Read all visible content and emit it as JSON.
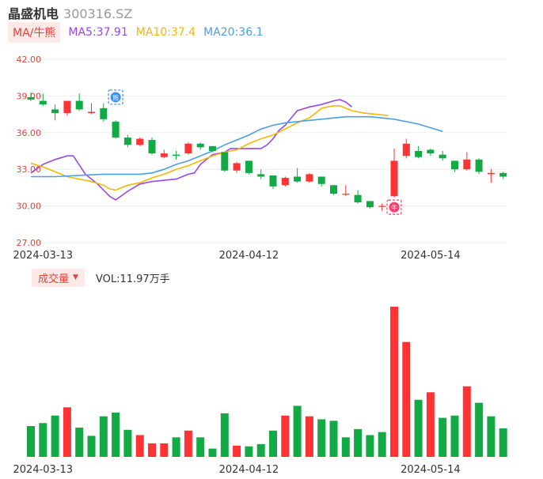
{
  "header": {
    "name": "晶盛机电",
    "code": "300316.SZ"
  },
  "legend": {
    "ma_tag": "MA/牛熊",
    "ma5": "MA5:37.91",
    "ma10": "MA10:37.4",
    "ma20": "MA20:36.1"
  },
  "volume_legend": {
    "tag": "成交量",
    "value": "VOL:11.97万手"
  },
  "colors": {
    "up": "#ff3333",
    "down": "#11aa44",
    "ma5": "#9b47e8",
    "ma10": "#f5b800",
    "ma20": "#4b9ee8",
    "tag_bg": "#fde9e7",
    "tag_text": "#e2433c"
  },
  "chart_data": [
    {
      "type": "candlestick",
      "y_ticks": [
        "42.00",
        "39.00",
        "36.00",
        "33.00",
        "30.00",
        "27.00"
      ],
      "ylim": [
        27,
        42
      ],
      "x_labels": [
        {
          "index": 1,
          "label": "2024-03-13"
        },
        {
          "index": 18,
          "label": "2024-04-12"
        },
        {
          "index": 33,
          "label": "2024-05-14"
        }
      ],
      "markers": [
        {
          "index": 7,
          "price": 38.9,
          "type": "bear",
          "glyph": "熊"
        },
        {
          "index": 30,
          "price": 29.9,
          "type": "bull",
          "glyph": "牛"
        }
      ],
      "candles": [
        {
          "o": 38.9,
          "h": 39.3,
          "l": 38.6,
          "c": 38.7
        },
        {
          "o": 38.6,
          "h": 39.2,
          "l": 38.2,
          "c": 38.3
        },
        {
          "o": 37.9,
          "h": 38.3,
          "l": 37.0,
          "c": 37.6
        },
        {
          "o": 37.6,
          "h": 38.6,
          "l": 37.4,
          "c": 38.6
        },
        {
          "o": 38.6,
          "h": 39.2,
          "l": 37.8,
          "c": 37.9
        },
        {
          "o": 37.6,
          "h": 38.4,
          "l": 37.5,
          "c": 37.7
        },
        {
          "o": 38.0,
          "h": 38.4,
          "l": 36.9,
          "c": 37.1
        },
        {
          "o": 36.9,
          "h": 37.0,
          "l": 35.5,
          "c": 35.6
        },
        {
          "o": 35.6,
          "h": 35.8,
          "l": 34.8,
          "c": 35.0
        },
        {
          "o": 35.0,
          "h": 35.6,
          "l": 34.9,
          "c": 35.5
        },
        {
          "o": 35.4,
          "h": 35.6,
          "l": 34.2,
          "c": 34.3
        },
        {
          "o": 34.0,
          "h": 34.6,
          "l": 33.9,
          "c": 34.3
        },
        {
          "o": 34.2,
          "h": 34.5,
          "l": 33.8,
          "c": 34.1
        },
        {
          "o": 34.3,
          "h": 35.2,
          "l": 34.2,
          "c": 35.1
        },
        {
          "o": 35.1,
          "h": 35.2,
          "l": 34.6,
          "c": 34.8
        },
        {
          "o": 34.9,
          "h": 34.9,
          "l": 34.4,
          "c": 34.5
        },
        {
          "o": 34.4,
          "h": 34.4,
          "l": 32.8,
          "c": 32.9
        },
        {
          "o": 32.9,
          "h": 33.6,
          "l": 32.7,
          "c": 33.5
        },
        {
          "o": 33.7,
          "h": 33.7,
          "l": 32.6,
          "c": 32.7
        },
        {
          "o": 32.6,
          "h": 33.0,
          "l": 32.2,
          "c": 32.4
        },
        {
          "o": 32.5,
          "h": 32.5,
          "l": 31.4,
          "c": 31.6
        },
        {
          "o": 31.7,
          "h": 32.4,
          "l": 31.6,
          "c": 32.3
        },
        {
          "o": 32.4,
          "h": 33.1,
          "l": 31.9,
          "c": 32.0
        },
        {
          "o": 32.0,
          "h": 32.7,
          "l": 31.9,
          "c": 32.6
        },
        {
          "o": 32.4,
          "h": 32.4,
          "l": 31.6,
          "c": 31.8
        },
        {
          "o": 31.7,
          "h": 31.7,
          "l": 30.9,
          "c": 31.0
        },
        {
          "o": 31.0,
          "h": 31.7,
          "l": 30.8,
          "c": 31.0
        },
        {
          "o": 30.9,
          "h": 31.3,
          "l": 30.2,
          "c": 30.3
        },
        {
          "o": 30.4,
          "h": 30.4,
          "l": 29.8,
          "c": 29.9
        },
        {
          "o": 30.0,
          "h": 30.2,
          "l": 29.6,
          "c": 30.0
        },
        {
          "o": 30.8,
          "h": 34.7,
          "l": 30.7,
          "c": 33.7
        },
        {
          "o": 34.1,
          "h": 35.5,
          "l": 33.9,
          "c": 35.1
        },
        {
          "o": 34.5,
          "h": 34.9,
          "l": 33.9,
          "c": 34.0
        },
        {
          "o": 34.6,
          "h": 34.7,
          "l": 34.1,
          "c": 34.3
        },
        {
          "o": 34.2,
          "h": 34.5,
          "l": 33.7,
          "c": 33.9
        },
        {
          "o": 33.7,
          "h": 33.7,
          "l": 32.8,
          "c": 33.0
        },
        {
          "o": 33.0,
          "h": 34.4,
          "l": 32.9,
          "c": 33.8
        },
        {
          "o": 33.8,
          "h": 33.9,
          "l": 32.6,
          "c": 32.8
        },
        {
          "o": 32.6,
          "h": 33.0,
          "l": 31.9,
          "c": 32.7
        },
        {
          "o": 32.7,
          "h": 32.8,
          "l": 32.2,
          "c": 32.4
        }
      ],
      "ma": [
        {
          "name": "MA5",
          "points": [
            [
              0,
              32.7
            ],
            [
              2,
              33.4
            ],
            [
              4,
              33.8
            ],
            [
              6,
              34.1
            ],
            [
              7,
              34.1
            ],
            [
              9,
              32.6
            ],
            [
              11,
              31.8
            ],
            [
              12,
              31.3
            ],
            [
              13,
              30.8
            ],
            [
              14,
              30.5
            ],
            [
              16,
              31.2
            ],
            [
              18,
              31.8
            ],
            [
              20,
              32.0
            ],
            [
              22,
              32.1
            ],
            [
              24,
              32.2
            ],
            [
              26,
              32.6
            ],
            [
              27,
              32.7
            ],
            [
              28,
              33.4
            ],
            [
              29,
              33.8
            ],
            [
              30,
              34.2
            ],
            [
              32,
              34.4
            ],
            [
              33,
              34.7
            ],
            [
              35,
              34.7
            ],
            [
              37,
              34.7
            ],
            [
              38,
              34.7
            ],
            [
              39,
              35.0
            ],
            [
              40,
              35.5
            ],
            [
              41,
              36.2
            ],
            [
              42,
              36.6
            ],
            [
              43,
              37.2
            ],
            [
              44,
              37.8
            ],
            [
              46,
              38.1
            ],
            [
              48,
              38.3
            ],
            [
              50,
              38.6
            ],
            [
              51,
              38.7
            ],
            [
              52,
              38.5
            ],
            [
              53,
              38.1
            ]
          ]
        },
        {
          "name": "MA10",
          "points": [
            [
              0,
              33.5
            ],
            [
              2,
              33.2
            ],
            [
              4,
              32.8
            ],
            [
              6,
              32.4
            ],
            [
              8,
              32.2
            ],
            [
              10,
              32.0
            ],
            [
              12,
              31.7
            ],
            [
              13,
              31.4
            ],
            [
              14,
              31.3
            ],
            [
              16,
              31.7
            ],
            [
              18,
              31.9
            ],
            [
              20,
              32.3
            ],
            [
              22,
              32.6
            ],
            [
              24,
              33.0
            ],
            [
              26,
              33.3
            ],
            [
              28,
              33.7
            ],
            [
              30,
              34.1
            ],
            [
              32,
              34.4
            ],
            [
              34,
              34.6
            ],
            [
              36,
              35.1
            ],
            [
              38,
              35.5
            ],
            [
              40,
              35.8
            ],
            [
              42,
              36.3
            ],
            [
              44,
              36.8
            ],
            [
              46,
              37.2
            ],
            [
              47,
              37.6
            ],
            [
              48,
              38.0
            ],
            [
              50,
              38.2
            ],
            [
              51,
              38.2
            ],
            [
              53,
              37.8
            ],
            [
              55,
              37.6
            ],
            [
              57,
              37.5
            ],
            [
              59,
              37.4
            ]
          ]
        },
        {
          "name": "MA20",
          "points": [
            [
              0,
              32.4
            ],
            [
              4,
              32.4
            ],
            [
              8,
              32.5
            ],
            [
              12,
              32.6
            ],
            [
              14,
              32.6
            ],
            [
              16,
              32.6
            ],
            [
              18,
              32.6
            ],
            [
              20,
              32.7
            ],
            [
              22,
              33.0
            ],
            [
              24,
              33.4
            ],
            [
              26,
              33.7
            ],
            [
              28,
              34.1
            ],
            [
              30,
              34.5
            ],
            [
              32,
              35.0
            ],
            [
              34,
              35.4
            ],
            [
              36,
              35.8
            ],
            [
              38,
              36.3
            ],
            [
              40,
              36.6
            ],
            [
              42,
              36.8
            ],
            [
              44,
              36.9
            ],
            [
              46,
              37.0
            ],
            [
              48,
              37.1
            ],
            [
              50,
              37.2
            ],
            [
              52,
              37.3
            ],
            [
              54,
              37.3
            ],
            [
              56,
              37.3
            ],
            [
              58,
              37.2
            ],
            [
              60,
              37.1
            ],
            [
              62,
              36.9
            ],
            [
              64,
              36.7
            ],
            [
              66,
              36.4
            ],
            [
              68,
              36.1
            ]
          ]
        }
      ]
    },
    {
      "type": "bar",
      "title": "成交量",
      "values": [
        4.1,
        4.5,
        5.5,
        6.6,
        3.9,
        2.8,
        5.4,
        5.9,
        3.6,
        2.9,
        1.8,
        1.8,
        2.6,
        3.5,
        2.6,
        1.1,
        5.8,
        1.5,
        1.4,
        1.7,
        3.5,
        5.5,
        6.8,
        5.4,
        5.0,
        4.8,
        2.6,
        3.7,
        2.9,
        3.3,
        20.0,
        15.3,
        7.6,
        8.6,
        5.2,
        5.5,
        9.4,
        7.2,
        5.4,
        3.8
      ],
      "up": [
        false,
        false,
        false,
        true,
        false,
        false,
        false,
        false,
        false,
        true,
        true,
        true,
        false,
        true,
        false,
        false,
        false,
        true,
        false,
        false,
        false,
        true,
        false,
        true,
        false,
        false,
        false,
        false,
        false,
        false,
        true,
        true,
        false,
        true,
        false,
        false,
        true,
        false,
        false,
        false
      ],
      "x_labels": [
        {
          "index": 1,
          "label": "2024-03-13"
        },
        {
          "index": 18,
          "label": "2024-04-12"
        },
        {
          "index": 33,
          "label": "2024-05-14"
        }
      ]
    }
  ]
}
